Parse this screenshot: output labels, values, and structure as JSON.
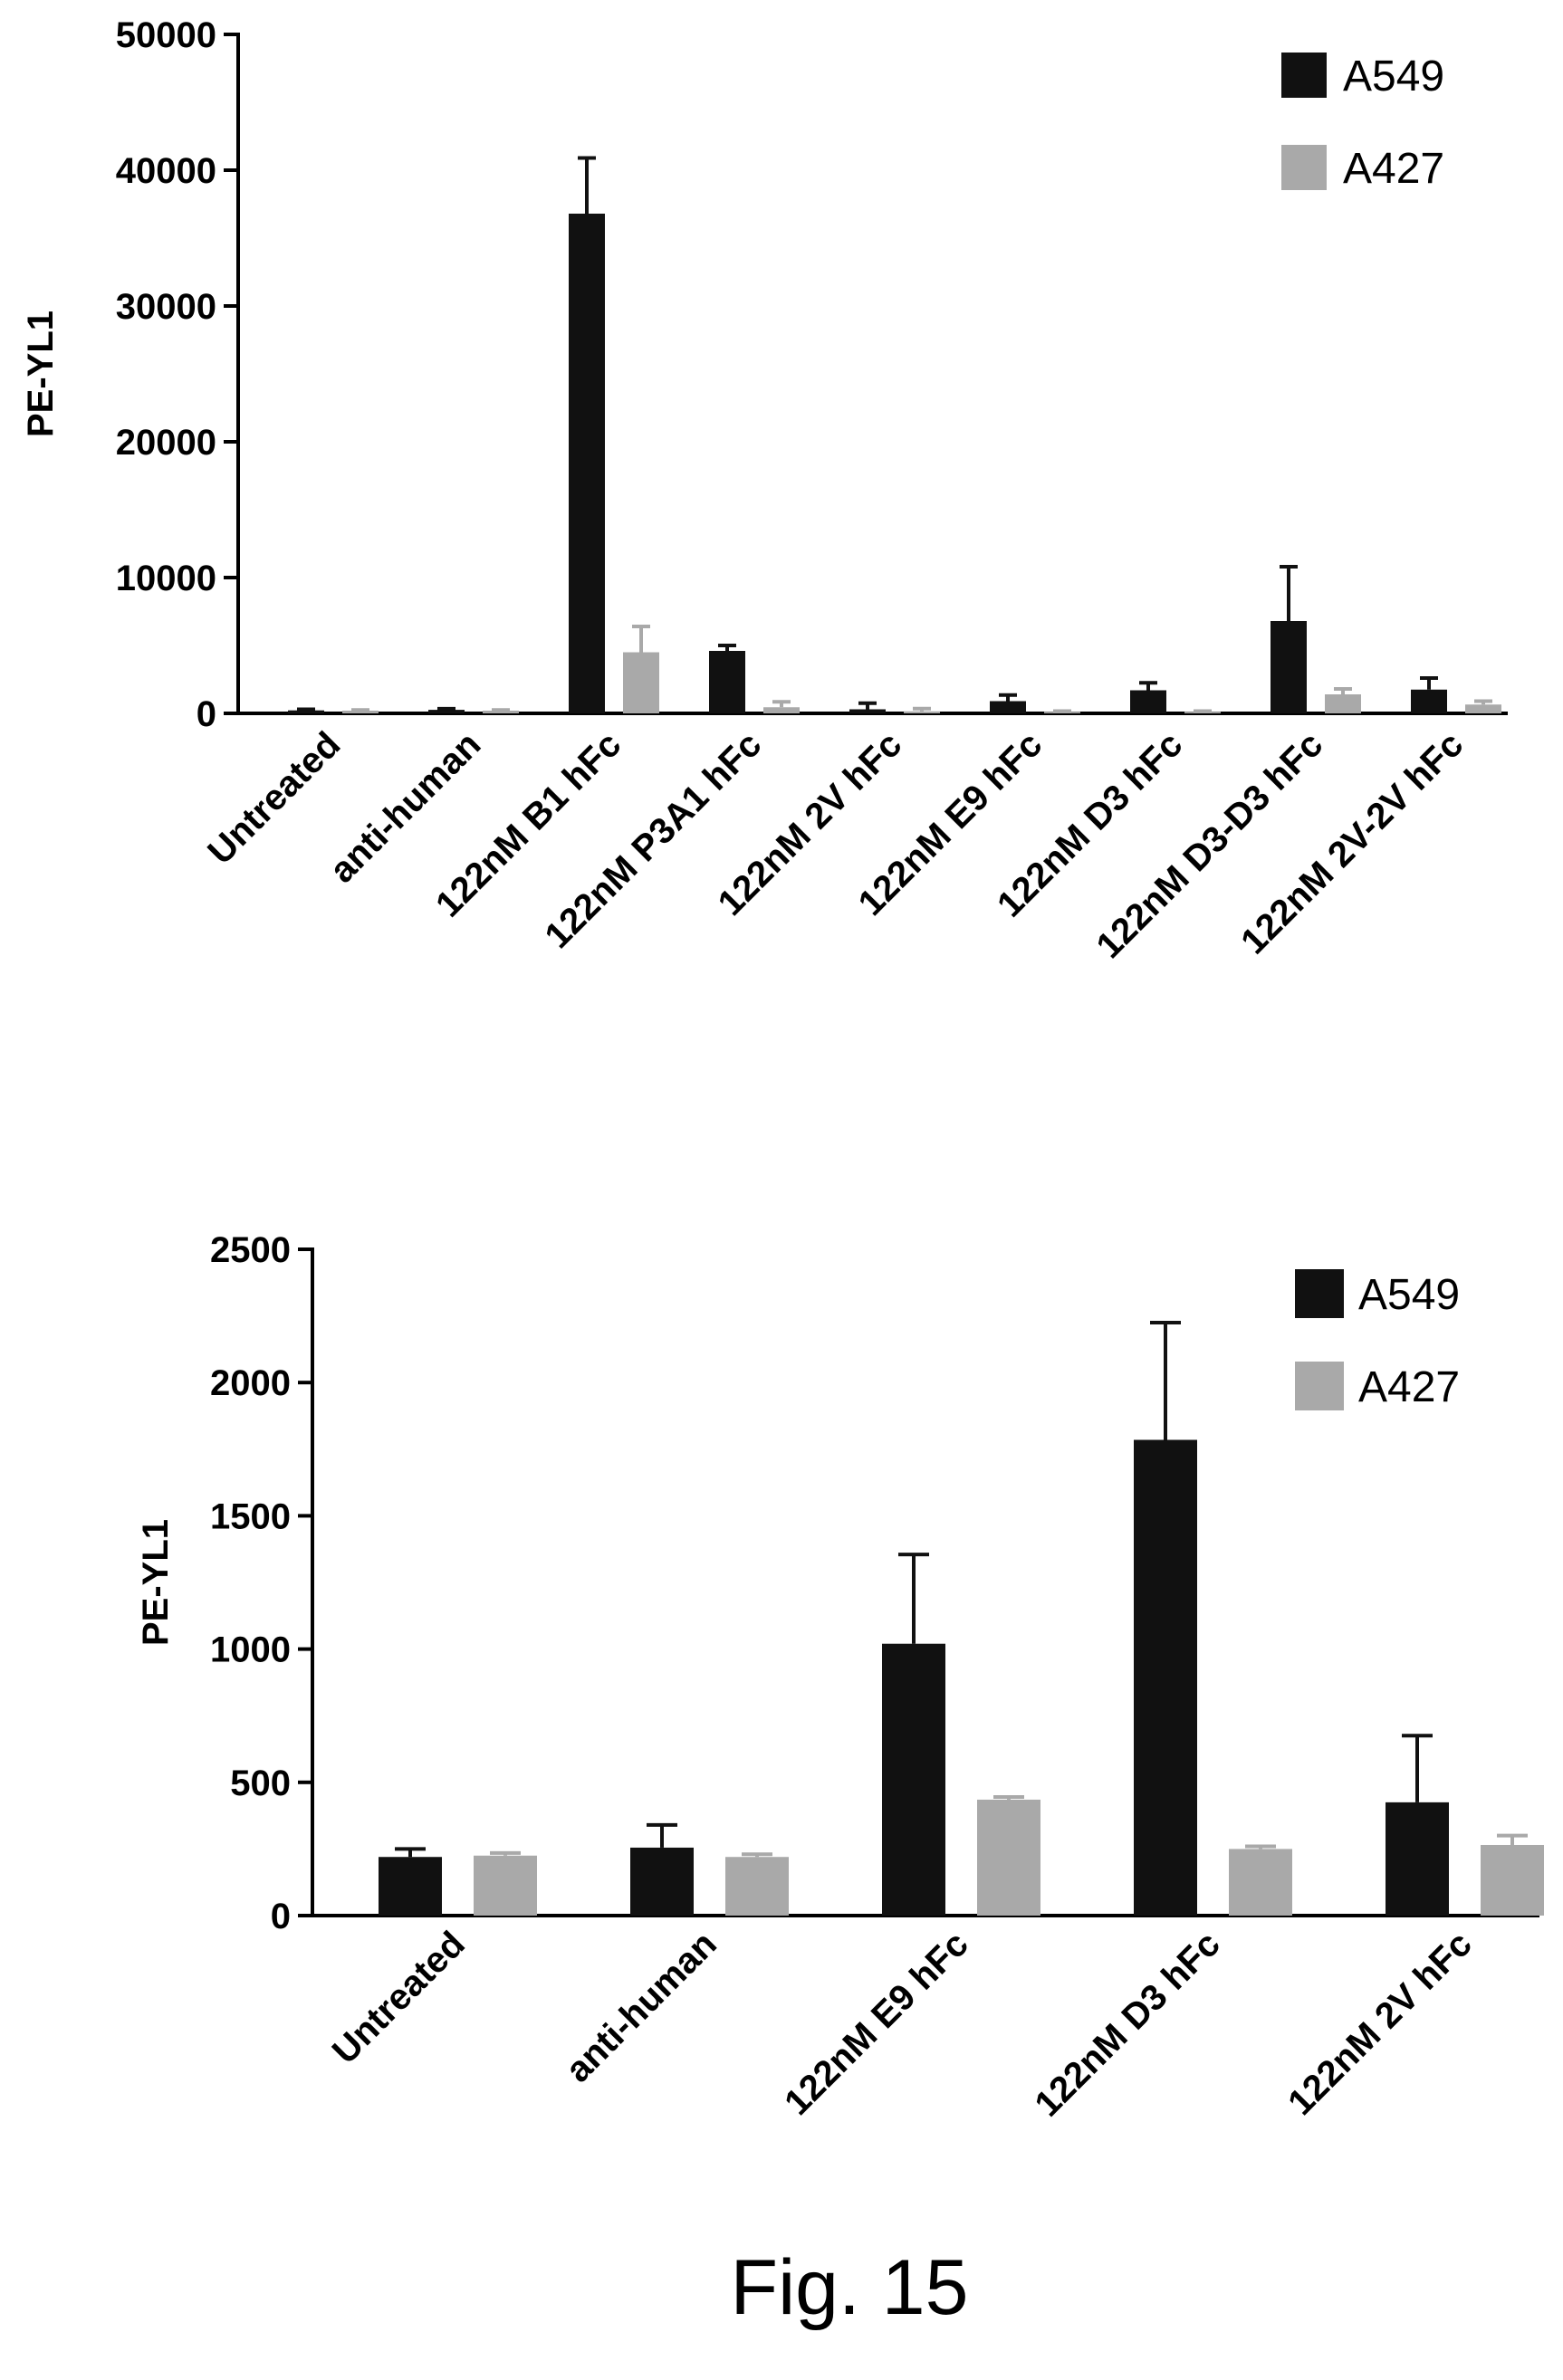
{
  "figure": {
    "caption": "Fig. 15"
  },
  "chart_data": [
    {
      "type": "bar",
      "ylabel": "PE-YL1",
      "ylim": [
        0,
        50000
      ],
      "yticks": [
        "0",
        "10000",
        "20000",
        "30000",
        "40000",
        "50000"
      ],
      "categories": [
        "Untreated",
        "anti-human",
        "122nM B1 hFc",
        "122nM P3A1 hFc",
        "122nM 2V hFc",
        "122nM E9 hFc",
        "122nM D3 hFc",
        "122nM D3-D3 hFc",
        "122nM 2V-2V hFc"
      ],
      "series": [
        {
          "name": "A549",
          "color": "#111111",
          "values": [
            220,
            260,
            36800,
            4600,
            300,
            900,
            1700,
            6800,
            1750
          ],
          "errors": [
            80,
            80,
            4100,
            400,
            450,
            450,
            550,
            4000,
            850
          ]
        },
        {
          "name": "A427",
          "color": "#a9a9a9",
          "values": [
            200,
            200,
            4500,
            450,
            150,
            120,
            120,
            1400,
            650
          ],
          "errors": [
            50,
            50,
            1900,
            400,
            200,
            50,
            50,
            400,
            250
          ]
        }
      ],
      "legend": "top-right",
      "grid": false
    },
    {
      "type": "bar",
      "ylabel": "PE-YL1",
      "ylim": [
        0,
        2500
      ],
      "yticks": [
        "0",
        "500",
        "1000",
        "1500",
        "2000",
        "2500"
      ],
      "categories": [
        "Untreated",
        "anti-human",
        "122nM E9 hFc",
        "122nM D3 hFc",
        "122nM 2V hFc"
      ],
      "series": [
        {
          "name": "A549",
          "color": "#111111",
          "values": [
            220,
            255,
            1020,
            1785,
            425
          ],
          "errors": [
            30,
            85,
            335,
            440,
            250
          ]
        },
        {
          "name": "A427",
          "color": "#a9a9a9",
          "values": [
            225,
            220,
            435,
            250,
            265
          ],
          "errors": [
            10,
            10,
            10,
            10,
            35
          ]
        }
      ],
      "legend": "top-right",
      "grid": false
    }
  ]
}
